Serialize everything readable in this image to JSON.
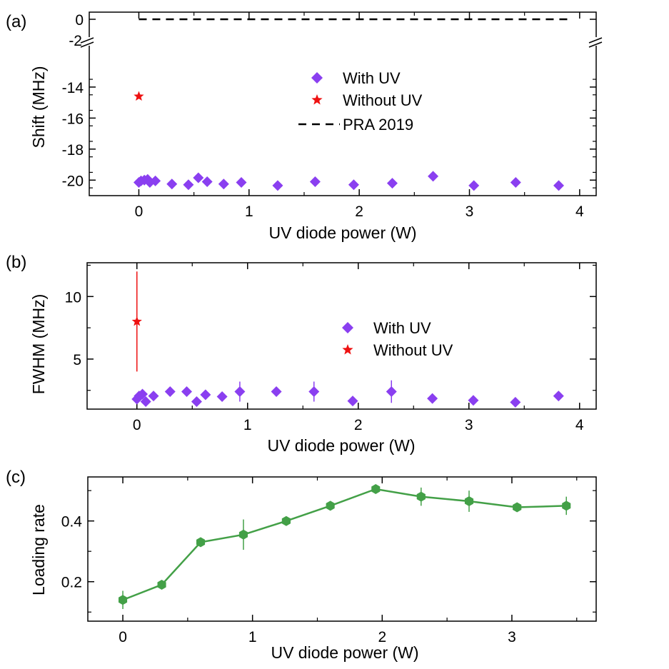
{
  "colors": {
    "with_uv": "#8a3ff0",
    "without_uv": "#ee1111",
    "loading": "#43a047",
    "axis": "#000000",
    "prl": "#000000"
  },
  "chart_data": [
    {
      "panel_label": "(a)",
      "type": "scatter",
      "xlabel": "UV diode power (W)",
      "ylabel": "Shift (MHz)",
      "xlim": [
        -0.45,
        4.15
      ],
      "xticks": [
        0,
        1,
        2,
        3,
        4
      ],
      "y_lower_range": [
        -21,
        -12.3
      ],
      "y_lower_ticks": [
        -20,
        -18,
        -16,
        -14
      ],
      "y_upper_ticks": [
        0
      ],
      "y_break_tick": -2,
      "axis_break": true,
      "series": [
        {
          "name": "With UV",
          "marker": "diamond",
          "points": [
            [
              0.0,
              -20.15
            ],
            [
              0.02,
              -20.05
            ],
            [
              0.05,
              -20.0
            ],
            [
              0.08,
              -19.95
            ],
            [
              0.1,
              -20.15
            ],
            [
              0.15,
              -20.05
            ],
            [
              0.3,
              -20.25
            ],
            [
              0.45,
              -20.3
            ],
            [
              0.54,
              -19.85
            ],
            [
              0.62,
              -20.1
            ],
            [
              0.77,
              -20.25
            ],
            [
              0.93,
              -20.15
            ],
            [
              1.26,
              -20.35
            ],
            [
              1.6,
              -20.1
            ],
            [
              1.95,
              -20.3
            ],
            [
              2.3,
              -20.2
            ],
            [
              2.67,
              -19.75
            ],
            [
              3.04,
              -20.35
            ],
            [
              3.42,
              -20.15
            ],
            [
              3.81,
              -20.35
            ]
          ]
        },
        {
          "name": "Without UV",
          "marker": "star",
          "points": [
            [
              0.0,
              -14.6
            ]
          ]
        },
        {
          "name": "PRA 2019",
          "marker": "dashed-line",
          "y": 0.0,
          "x_range": [
            0.0,
            3.9
          ]
        }
      ],
      "legend": [
        "With UV",
        "Without UV",
        "PRA 2019"
      ]
    },
    {
      "panel_label": "(b)",
      "type": "scatter",
      "xlabel": "UV diode power (W)",
      "ylabel": "FWHM (MHz)",
      "xlim": [
        -0.45,
        4.15
      ],
      "ylim": [
        1,
        12.7
      ],
      "xticks": [
        0,
        1,
        2,
        3,
        4
      ],
      "yticks": [
        5,
        10
      ],
      "series": [
        {
          "name": "With UV",
          "marker": "diamond",
          "points": [
            [
              0.0,
              1.8,
              0.3
            ],
            [
              0.02,
              2.05,
              0.3
            ],
            [
              0.05,
              2.2,
              0.3
            ],
            [
              0.08,
              1.6,
              0.2
            ],
            [
              0.15,
              2.05,
              0.3
            ],
            [
              0.3,
              2.4,
              0.3
            ],
            [
              0.45,
              2.4,
              0.3
            ],
            [
              0.54,
              1.6,
              0.3
            ],
            [
              0.62,
              2.15,
              0.3
            ],
            [
              0.77,
              2.0,
              0.3
            ],
            [
              0.93,
              2.4,
              0.8
            ],
            [
              1.26,
              2.4,
              0.3
            ],
            [
              1.6,
              2.4,
              0.8
            ],
            [
              1.95,
              1.65,
              0.3
            ],
            [
              2.3,
              2.4,
              0.9
            ],
            [
              2.67,
              1.85,
              0.3
            ],
            [
              3.04,
              1.7,
              0.3
            ],
            [
              3.42,
              1.55,
              0.3
            ],
            [
              3.81,
              2.05,
              0.3
            ]
          ]
        },
        {
          "name": "Without UV",
          "marker": "star",
          "points": [
            [
              0.0,
              8.0,
              4.0
            ]
          ]
        }
      ],
      "legend": [
        "With UV",
        "Without UV"
      ]
    },
    {
      "panel_label": "(c)",
      "type": "line",
      "xlabel": "UV diode power (W)",
      "ylabel": "Loading rate",
      "xlim": [
        -0.27,
        3.65
      ],
      "ylim": [
        0.07,
        0.545
      ],
      "xticks": [
        0,
        1,
        2,
        3
      ],
      "yticks": [
        0.2,
        0.4
      ],
      "series": [
        {
          "name": "Loading rate",
          "marker": "hexagon",
          "points": [
            [
              0.0,
              0.14,
              0.03
            ],
            [
              0.3,
              0.19,
              0.01
            ],
            [
              0.6,
              0.33,
              0.01
            ],
            [
              0.93,
              0.355,
              0.05
            ],
            [
              1.26,
              0.4,
              0.01
            ],
            [
              1.6,
              0.45,
              0.01
            ],
            [
              1.95,
              0.505,
              0.01
            ],
            [
              2.3,
              0.48,
              0.03
            ],
            [
              2.67,
              0.465,
              0.035
            ],
            [
              3.04,
              0.445,
              0.01
            ],
            [
              3.42,
              0.45,
              0.03
            ]
          ]
        }
      ]
    }
  ]
}
